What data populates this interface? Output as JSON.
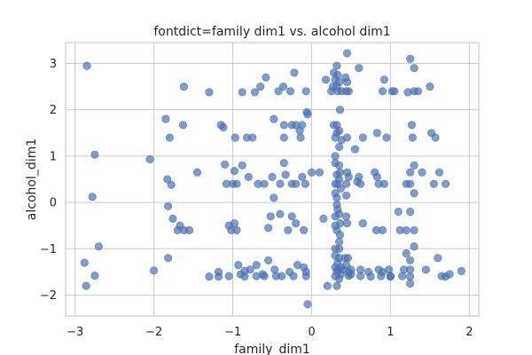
{
  "chart_data": {
    "type": "scatter",
    "title": "fontdict=family dim1 vs. alcohol dim1",
    "xlabel": "family_dim1",
    "ylabel": "alcohol_dim1",
    "xlim": [
      -3.12,
      2.12
    ],
    "ylim": [
      -2.45,
      3.45
    ],
    "xticks": [
      -3,
      -2,
      -1,
      0,
      1,
      2
    ],
    "yticks": [
      -2,
      -1,
      0,
      1,
      2,
      3
    ],
    "grid": true,
    "color": "#4c72b0",
    "points": [
      [
        -2.85,
        2.95
      ],
      [
        -2.75,
        1.03
      ],
      [
        -2.78,
        0.12
      ],
      [
        -2.7,
        -0.95
      ],
      [
        -2.88,
        -1.3
      ],
      [
        -2.86,
        -1.8
      ],
      [
        -2.75,
        -1.58
      ],
      [
        -2.05,
        0.93
      ],
      [
        -2.0,
        -1.47
      ],
      [
        -1.85,
        1.8
      ],
      [
        -1.8,
        1.4
      ],
      [
        -1.83,
        0.5
      ],
      [
        -1.78,
        0.38
      ],
      [
        -1.82,
        -0.08
      ],
      [
        -1.76,
        -0.35
      ],
      [
        -1.7,
        -0.6
      ],
      [
        -1.67,
        -0.5
      ],
      [
        -1.62,
        -0.6
      ],
      [
        -1.55,
        -0.6
      ],
      [
        -1.82,
        -1.2
      ],
      [
        -1.62,
        2.5
      ],
      [
        -1.63,
        1.67
      ],
      [
        -1.3,
        2.38
      ],
      [
        -1.45,
        0.65
      ],
      [
        -1.3,
        -1.6
      ],
      [
        -1.18,
        -1.5
      ],
      [
        -1.18,
        -1.6
      ],
      [
        -1.15,
        1.67
      ],
      [
        -1.12,
        1.62
      ],
      [
        -1.1,
        0.82
      ],
      [
        -1.08,
        0.4
      ],
      [
        -1.05,
        -0.5
      ],
      [
        -1.05,
        -1.59
      ],
      [
        -1.02,
        -0.6
      ],
      [
        -1.0,
        0.4
      ],
      [
        -0.98,
        0.68
      ],
      [
        -0.98,
        -0.45
      ],
      [
        -0.95,
        -0.6
      ],
      [
        -0.97,
        1.4
      ],
      [
        -0.95,
        0.4
      ],
      [
        -0.93,
        -1.35
      ],
      [
        -0.9,
        -1.55
      ],
      [
        -0.88,
        2.38
      ],
      [
        -0.88,
        0.8
      ],
      [
        -0.85,
        -1.48
      ],
      [
        -0.85,
        -1.6
      ],
      [
        -0.82,
        1.4
      ],
      [
        -0.8,
        0.55
      ],
      [
        -0.78,
        -1.45
      ],
      [
        -0.75,
        1.4
      ],
      [
        -0.72,
        2.38
      ],
      [
        -0.7,
        -1.59
      ],
      [
        -0.7,
        -1.35
      ],
      [
        -0.68,
        0.4
      ],
      [
        -0.65,
        2.5
      ],
      [
        -0.62,
        -1.55
      ],
      [
        -0.6,
        0.4
      ],
      [
        -0.6,
        -1.59
      ],
      [
        -0.58,
        2.7
      ],
      [
        -0.55,
        -1.25
      ],
      [
        -0.55,
        -0.55
      ],
      [
        -0.52,
        -0.3
      ],
      [
        -0.5,
        0.55
      ],
      [
        -0.48,
        1.8
      ],
      [
        -0.48,
        0.1
      ],
      [
        -0.47,
        -1.45
      ],
      [
        -0.45,
        -1.59
      ],
      [
        -0.42,
        2.4
      ],
      [
        -0.4,
        0.4
      ],
      [
        -0.4,
        -0.25
      ],
      [
        -0.38,
        -1.59
      ],
      [
        -0.36,
        2.5
      ],
      [
        -0.35,
        1.67
      ],
      [
        -0.35,
        1.4
      ],
      [
        -0.35,
        0.85
      ],
      [
        -0.33,
        0.6
      ],
      [
        -0.3,
        -0.6
      ],
      [
        -0.28,
        -1.5
      ],
      [
        -0.27,
        2.4
      ],
      [
        -0.25,
        1.67
      ],
      [
        -0.25,
        0.4
      ],
      [
        -0.25,
        -0.3
      ],
      [
        -0.23,
        -1.59
      ],
      [
        -0.22,
        2.8
      ],
      [
        -0.2,
        1.67
      ],
      [
        -0.2,
        0.4
      ],
      [
        -0.2,
        -0.45
      ],
      [
        -0.18,
        -1.35
      ],
      [
        -0.15,
        1.55
      ],
      [
        -0.14,
        1.4
      ],
      [
        -0.12,
        1.67
      ],
      [
        -0.12,
        0.55
      ],
      [
        -0.1,
        -1.4
      ],
      [
        -0.1,
        -0.6
      ],
      [
        -0.08,
        0.4
      ],
      [
        -0.07,
        -1.59
      ],
      [
        -0.07,
        2.4
      ],
      [
        -0.07,
        -1.5
      ],
      [
        -0.06,
        1.95
      ],
      [
        -0.05,
        1.9
      ],
      [
        -0.05,
        -2.2
      ],
      [
        0.0,
        0.65
      ],
      [
        0.1,
        0.65
      ],
      [
        0.15,
        -0.35
      ],
      [
        0.18,
        2.65
      ],
      [
        0.2,
        -1.8
      ],
      [
        0.25,
        2.4
      ],
      [
        0.27,
        2.5
      ],
      [
        0.28,
        2.8
      ],
      [
        0.28,
        1.67
      ],
      [
        0.3,
        2.65
      ],
      [
        0.3,
        1.4
      ],
      [
        0.3,
        1.0
      ],
      [
        0.3,
        0.85
      ],
      [
        0.3,
        0.4
      ],
      [
        0.3,
        0.2
      ],
      [
        0.3,
        -0.3
      ],
      [
        0.3,
        -0.5
      ],
      [
        0.3,
        -1.0
      ],
      [
        0.3,
        -1.15
      ],
      [
        0.3,
        -1.4
      ],
      [
        0.3,
        -1.59
      ],
      [
        0.32,
        2.95
      ],
      [
        0.32,
        2.5
      ],
      [
        0.32,
        1.67
      ],
      [
        0.32,
        1.5
      ],
      [
        0.32,
        0.6
      ],
      [
        0.32,
        0.1
      ],
      [
        0.32,
        -0.05
      ],
      [
        0.32,
        -0.6
      ],
      [
        0.32,
        -1.5
      ],
      [
        0.32,
        -1.8
      ],
      [
        0.33,
        2.75
      ],
      [
        0.33,
        2.4
      ],
      [
        0.33,
        0.4
      ],
      [
        0.33,
        -0.15
      ],
      [
        0.33,
        -1.3
      ],
      [
        0.33,
        -1.45
      ],
      [
        0.35,
        2.6
      ],
      [
        0.35,
        1.55
      ],
      [
        0.35,
        1.2
      ],
      [
        0.35,
        0.8
      ],
      [
        0.35,
        0.5
      ],
      [
        0.35,
        -0.25
      ],
      [
        0.35,
        -0.85
      ],
      [
        0.35,
        -1.0
      ],
      [
        0.35,
        -1.2
      ],
      [
        0.35,
        -1.65
      ],
      [
        0.36,
        2.0
      ],
      [
        0.36,
        0.65
      ],
      [
        0.36,
        -0.45
      ],
      [
        0.36,
        -0.7
      ],
      [
        0.37,
        0.3
      ],
      [
        0.37,
        -1.4
      ],
      [
        0.37,
        -1.55
      ],
      [
        0.38,
        2.4
      ],
      [
        0.38,
        1.35
      ],
      [
        0.4,
        -1.45
      ],
      [
        0.42,
        -1.2
      ],
      [
        0.43,
        2.7
      ],
      [
        0.44,
        2.4
      ],
      [
        0.44,
        0.4
      ],
      [
        0.44,
        0.15
      ],
      [
        0.44,
        -0.3
      ],
      [
        0.44,
        -1.35
      ],
      [
        0.45,
        2.6
      ],
      [
        0.45,
        1.4
      ],
      [
        0.45,
        0.65
      ],
      [
        0.45,
        -0.45
      ],
      [
        0.46,
        -1.2
      ],
      [
        0.45,
        3.22
      ],
      [
        0.47,
        2.4
      ],
      [
        0.47,
        0.55
      ],
      [
        0.47,
        -1.5
      ],
      [
        0.47,
        -1.58
      ],
      [
        0.5,
        -1.45
      ],
      [
        0.5,
        -1.55
      ],
      [
        0.55,
        1.15
      ],
      [
        0.58,
        0.45
      ],
      [
        0.6,
        2.9
      ],
      [
        0.6,
        0.55
      ],
      [
        0.62,
        0.4
      ],
      [
        0.62,
        -1.45
      ],
      [
        0.62,
        -1.59
      ],
      [
        0.65,
        1.4
      ],
      [
        0.65,
        -0.45
      ],
      [
        0.72,
        -1.5
      ],
      [
        0.75,
        -1.6
      ],
      [
        0.8,
        0.65
      ],
      [
        0.82,
        -0.6
      ],
      [
        0.83,
        0.55
      ],
      [
        0.83,
        1.5
      ],
      [
        0.85,
        0.4
      ],
      [
        0.85,
        -1.45
      ],
      [
        0.88,
        -1.59
      ],
      [
        0.9,
        2.4
      ],
      [
        0.9,
        -0.6
      ],
      [
        0.9,
        -1.5
      ],
      [
        0.92,
        2.65
      ],
      [
        0.92,
        0.4
      ],
      [
        0.95,
        1.4
      ],
      [
        0.98,
        -1.45
      ],
      [
        1.0,
        -1.59
      ],
      [
        1.0,
        -1.6
      ],
      [
        1.02,
        2.4
      ],
      [
        1.05,
        2.4
      ],
      [
        1.1,
        -0.2
      ],
      [
        1.12,
        -0.6
      ],
      [
        1.15,
        -1.59
      ],
      [
        1.17,
        -1.45
      ],
      [
        1.2,
        -0.6
      ],
      [
        1.2,
        0.4
      ],
      [
        1.2,
        -1.1
      ],
      [
        1.22,
        2.38
      ],
      [
        1.25,
        3.1
      ],
      [
        1.25,
        0.65
      ],
      [
        1.25,
        0.4
      ],
      [
        1.25,
        -0.2
      ],
      [
        1.25,
        -1.25
      ],
      [
        1.25,
        -1.45
      ],
      [
        1.25,
        -1.6
      ],
      [
        1.25,
        -1.75
      ],
      [
        1.27,
        1.67
      ],
      [
        1.28,
        1.4
      ],
      [
        1.3,
        2.4
      ],
      [
        1.3,
        2.9
      ],
      [
        1.3,
        0.8
      ],
      [
        1.3,
        0.2
      ],
      [
        1.3,
        -0.6
      ],
      [
        1.3,
        -0.95
      ],
      [
        1.35,
        2.4
      ],
      [
        1.4,
        0.65
      ],
      [
        1.45,
        -1.45
      ],
      [
        1.5,
        2.5
      ],
      [
        1.52,
        1.5
      ],
      [
        1.55,
        0.4
      ],
      [
        1.57,
        1.4
      ],
      [
        1.6,
        -1.2
      ],
      [
        1.62,
        0.65
      ],
      [
        1.65,
        -1.59
      ],
      [
        1.7,
        -1.6
      ],
      [
        1.7,
        0.4
      ],
      [
        1.75,
        -1.55
      ],
      [
        1.9,
        -1.48
      ]
    ]
  }
}
